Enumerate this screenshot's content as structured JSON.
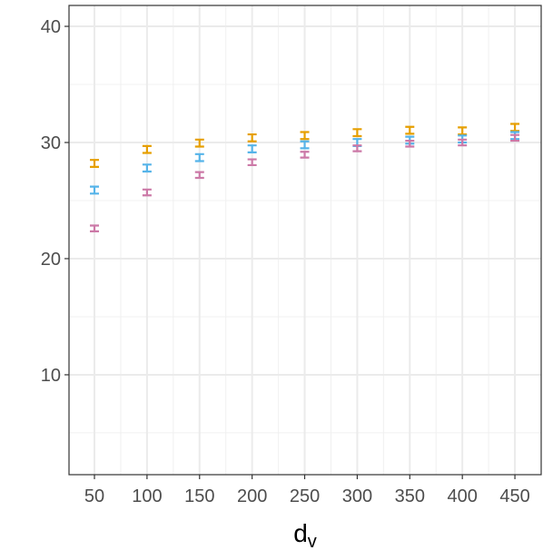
{
  "chart_data": {
    "type": "errorbar",
    "x_label": "d",
    "x_label_sub": "v",
    "x": [
      50,
      100,
      150,
      200,
      250,
      300,
      350,
      400,
      450
    ],
    "xlim": [
      25.8,
      475
    ],
    "xticks": [
      50,
      100,
      150,
      200,
      250,
      300,
      350,
      400,
      450
    ],
    "ylim": [
      1.4,
      41.8
    ],
    "yticks": [
      10,
      20,
      30,
      40
    ],
    "grid": true,
    "series": [
      {
        "color": "#E69F00",
        "values": [
          28.2,
          29.4,
          29.95,
          30.4,
          30.6,
          30.85,
          31.05,
          31.0,
          31.3
        ],
        "errors": [
          0.3,
          0.3,
          0.3,
          0.3,
          0.3,
          0.3,
          0.3,
          0.3,
          0.3
        ]
      },
      {
        "color": "#56B4E9",
        "values": [
          25.9,
          27.8,
          28.7,
          29.45,
          29.8,
          30.0,
          30.2,
          30.3,
          30.6
        ],
        "errors": [
          0.3,
          0.3,
          0.3,
          0.3,
          0.3,
          0.3,
          0.3,
          0.3,
          0.3
        ]
      },
      {
        "color": "#CC79A7",
        "values": [
          22.6,
          25.7,
          27.2,
          28.3,
          28.95,
          29.5,
          29.9,
          30.0,
          30.4
        ],
        "errors": [
          0.25,
          0.25,
          0.25,
          0.25,
          0.25,
          0.25,
          0.25,
          0.25,
          0.25
        ]
      }
    ]
  }
}
